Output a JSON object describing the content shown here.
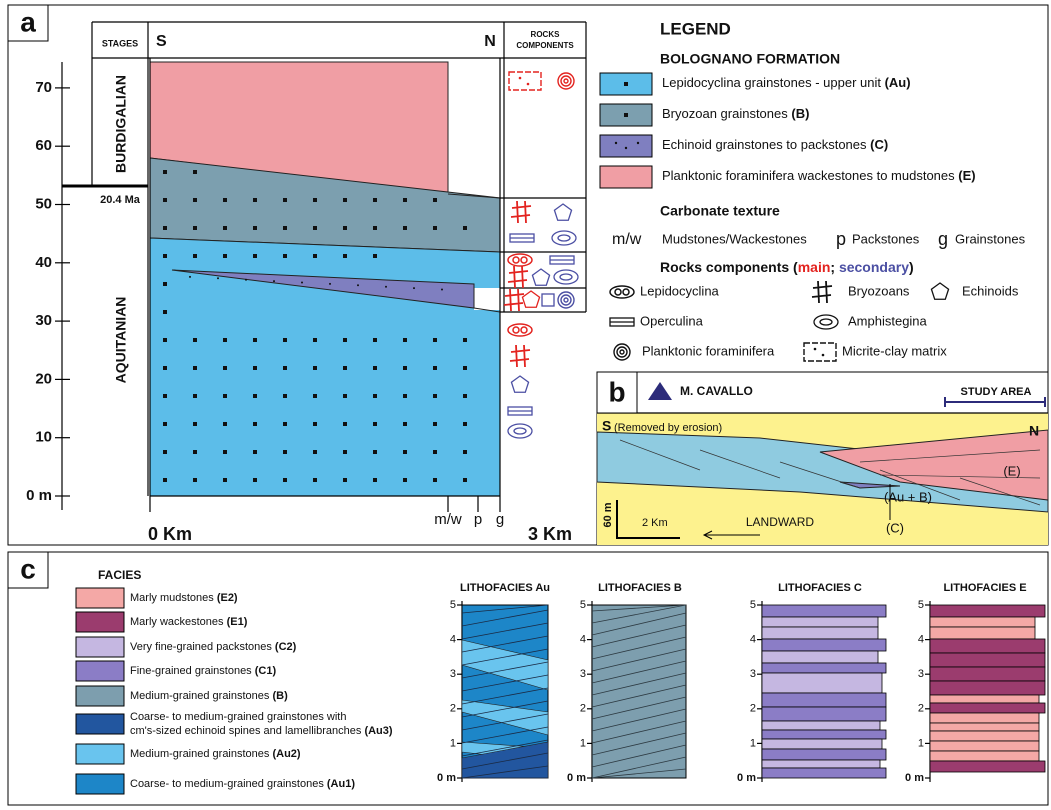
{
  "panel_a": {
    "letter": "a",
    "stages_header": "STAGES",
    "south": "S",
    "north": "N",
    "rocks_header": [
      "ROCKS",
      "COMPONENTS"
    ],
    "stages": [
      "BURDIGALIAN",
      "AQUITANIAN"
    ],
    "age": "20.4 Ma",
    "axis_ticks": [
      "0 m",
      "10",
      "20",
      "30",
      "40",
      "50",
      "60",
      "70"
    ],
    "distance_start": "0 Km",
    "distance_end": "3 Km",
    "texture_ticks": [
      "m/w",
      "p",
      "g"
    ]
  },
  "legend": {
    "title": "LEGEND",
    "formation": "BOLOGNANO FORMATION",
    "units": [
      {
        "label": "Lepidocyclina grainstones - upper unit ",
        "code": "(Au)"
      },
      {
        "label": "Bryozoan grainstones ",
        "code": "(B)"
      },
      {
        "label": "Echinoid grainstones to packstones ",
        "code": "(C)"
      },
      {
        "label": "Planktonic foraminifera wackestones to mudstones ",
        "code": "(E)"
      }
    ],
    "texture_title": "Carbonate texture",
    "textures": [
      {
        "symbol": "m/w",
        "label": "Mudstones/Wackestones"
      },
      {
        "symbol": "p",
        "label": "Packstones"
      },
      {
        "symbol": "g",
        "label": "Grainstones"
      }
    ],
    "components_title": "Rocks components (",
    "main": "main",
    "separator": "; ",
    "secondary": "secondary",
    "close": ")",
    "components": [
      "Lepidocyclina",
      "Bryozoans",
      "Echinoids",
      "Operculina",
      "Amphistegina",
      "Planktonic foraminifera",
      "Micrite-clay matrix"
    ]
  },
  "panel_b": {
    "letter": "b",
    "locality": "M. CAVALLO",
    "study_area": "STUDY AREA",
    "south": "S",
    "erosion": "(Removed by erosion)",
    "north": "N",
    "unit_e": "(E)",
    "unit_au_b": "(Au + B)",
    "unit_c": "(C)",
    "vertical_scale": "60 m",
    "horizontal_scale": "2 Km",
    "direction": "LANDWARD"
  },
  "panel_c": {
    "letter": "c",
    "facies_title": "FACIES",
    "facies": [
      {
        "lines": [
          "Marly mudstones "
        ],
        "code": "(E2)"
      },
      {
        "lines": [
          "Marly wackestones "
        ],
        "code": "(E1)"
      },
      {
        "lines": [
          "Very fine-grained packstones "
        ],
        "code": "(C2)"
      },
      {
        "lines": [
          "Fine-grained grainstones "
        ],
        "code": "(C1)"
      },
      {
        "lines": [
          "Medium-grained grainstones "
        ],
        "code": "(B)"
      },
      {
        "lines": [
          "Coarse- to medium-grained grainstones with",
          "cm's-sized echinoid spines and lamellibranches "
        ],
        "code": "(Au3)"
      },
      {
        "lines": [
          "Medium-grained grainstones "
        ],
        "code": "(Au2)"
      },
      {
        "lines": [
          "Coarse- to medium-grained grainstones "
        ],
        "code": "(Au1)"
      }
    ],
    "lithofacies": [
      {
        "title": "LITHOFACIES Au",
        "ticks": [
          "0 m",
          "1",
          "2",
          "3",
          "4",
          "5"
        ]
      },
      {
        "title": "LITHOFACIES B",
        "ticks": [
          "0 m",
          "1",
          "2",
          "3",
          "4",
          "5"
        ]
      },
      {
        "title": "LITHOFACIES C",
        "ticks": [
          "0 m",
          "1",
          "2",
          "3",
          "4",
          "5"
        ]
      },
      {
        "title": "LITHOFACIES E",
        "ticks": [
          "0 m",
          "1",
          "2",
          "3",
          "4",
          "5"
        ]
      }
    ]
  }
}
